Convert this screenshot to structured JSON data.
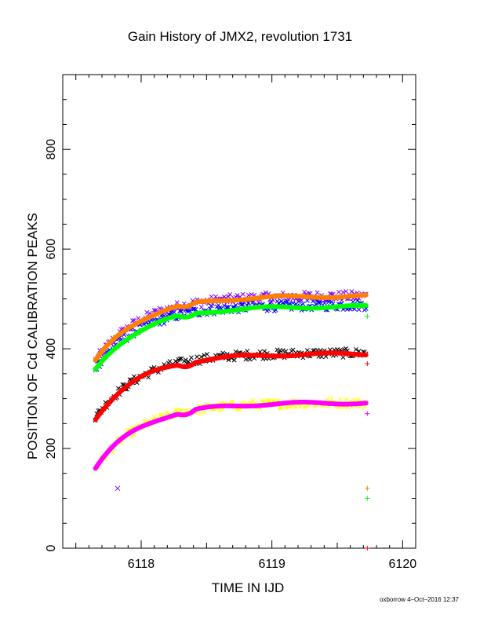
{
  "chart_data": {
    "type": "scatter",
    "title": "Gain History of JMX2, revolution 1731",
    "xlabel": "TIME IN IJD",
    "ylabel": "POSITION OF Cd CALIBRATION PEAKS",
    "xlim": [
      6117.4,
      6120.1
    ],
    "ylim": [
      0,
      950
    ],
    "x_ticks": [
      6118,
      6119,
      6120
    ],
    "y_ticks": [
      0,
      200,
      400,
      600,
      800
    ],
    "grid": false,
    "legend": "none",
    "series": [
      {
        "color": "#8000ff",
        "marker": "x",
        "curve": {
          "start": 375,
          "plateau": 506,
          "tau": 0.35,
          "t0": 6117.65,
          "t1": 6119.72
        },
        "noise": 10,
        "extra_points": [
          {
            "x": 6117.82,
            "y": 120
          }
        ]
      },
      {
        "color": "#0000ff",
        "marker": "x",
        "curve": {
          "start": 362,
          "plateau": 488,
          "tau": 0.35,
          "t0": 6117.65,
          "t1": 6119.72
        },
        "noise": 10,
        "extra_points": []
      },
      {
        "color": "#ff8000",
        "marker": "line",
        "curve": {
          "start": 375,
          "plateau": 506,
          "tau": 0.35,
          "t0": 6117.65,
          "t1": 6119.72
        },
        "extra_points": [
          {
            "x": 6119.73,
            "y": 120
          }
        ]
      },
      {
        "color": "#00ff00",
        "marker": "line",
        "curve": {
          "start": 357,
          "plateau": 485,
          "tau": 0.35,
          "t0": 6117.65,
          "t1": 6119.72
        },
        "extra_points": [
          {
            "x": 6119.73,
            "y": 465
          },
          {
            "x": 6119.73,
            "y": 100
          }
        ]
      },
      {
        "color": "#000000",
        "marker": "x",
        "curve": {
          "start": 262,
          "plateau": 392,
          "tau": 0.35,
          "t0": 6117.65,
          "t1": 6119.72
        },
        "noise": 9,
        "extra_points": []
      },
      {
        "color": "#ff0000",
        "marker": "line",
        "curve": {
          "start": 260,
          "plateau": 390,
          "tau": 0.35,
          "t0": 6117.65,
          "t1": 6119.72
        },
        "extra_points": [
          {
            "x": 6119.73,
            "y": 370
          },
          {
            "x": 6119.73,
            "y": 0
          }
        ]
      },
      {
        "color": "#ffff00",
        "marker": "x",
        "curve": {
          "start": 160,
          "plateau": 292,
          "tau": 0.35,
          "t0": 6117.65,
          "t1": 6119.72
        },
        "noise": 9,
        "extra_points": []
      },
      {
        "color": "#ff00ff",
        "marker": "line",
        "curve": {
          "start": 160,
          "plateau": 292,
          "tau": 0.35,
          "t0": 6117.65,
          "t1": 6119.72
        },
        "extra_points": [
          {
            "x": 6119.73,
            "y": 270
          }
        ]
      }
    ]
  },
  "footer": "oxborrow  4–Oct–2016 12:37"
}
